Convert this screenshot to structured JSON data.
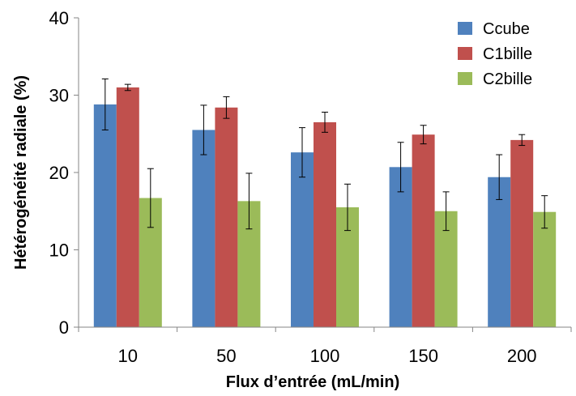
{
  "chart_data": {
    "type": "bar",
    "categories": [
      "10",
      "50",
      "100",
      "150",
      "200"
    ],
    "series": [
      {
        "name": "Ccube",
        "color": "#4F81BD",
        "values": [
          28.8,
          25.5,
          22.6,
          20.7,
          19.4
        ],
        "errors": [
          3.3,
          3.2,
          3.2,
          3.2,
          2.9
        ]
      },
      {
        "name": "C1bille",
        "color": "#C0504D",
        "values": [
          31.0,
          28.4,
          26.5,
          24.9,
          24.2
        ],
        "errors": [
          0.4,
          1.4,
          1.3,
          1.2,
          0.7
        ]
      },
      {
        "name": "C2bille",
        "color": "#9BBB59",
        "values": [
          16.7,
          16.3,
          15.5,
          15.0,
          14.9
        ],
        "errors": [
          3.8,
          3.6,
          3.0,
          2.5,
          2.1
        ]
      }
    ],
    "xlabel": "Flux d’entrée (mL/min)",
    "ylabel": "Hétérogénéité radiale (%)",
    "ylim": [
      0,
      40
    ],
    "yticks": [
      0,
      10,
      20,
      30,
      40
    ],
    "grid": false,
    "legend_position": "top-right"
  }
}
